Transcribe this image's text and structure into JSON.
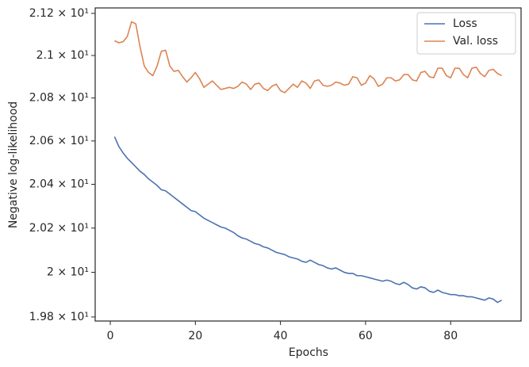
{
  "chart_data": {
    "type": "line",
    "x_label": "Epochs",
    "y_label": "Negative log-likelihood",
    "x": [
      1,
      2,
      3,
      4,
      5,
      6,
      7,
      8,
      9,
      10,
      11,
      12,
      13,
      14,
      15,
      16,
      17,
      18,
      19,
      20,
      21,
      22,
      23,
      24,
      25,
      26,
      27,
      28,
      29,
      30,
      31,
      32,
      33,
      34,
      35,
      36,
      37,
      38,
      39,
      40,
      41,
      42,
      43,
      44,
      45,
      46,
      47,
      48,
      49,
      50,
      51,
      52,
      53,
      54,
      55,
      56,
      57,
      58,
      59,
      60,
      61,
      62,
      63,
      64,
      65,
      66,
      67,
      68,
      69,
      70,
      71,
      72,
      73,
      74,
      75,
      76,
      77,
      78,
      79,
      80,
      81,
      82,
      83,
      84,
      85,
      86,
      87,
      88,
      89,
      90,
      91,
      92
    ],
    "series": [
      {
        "name": "Loss",
        "color": "#4c72b0",
        "values": [
          20.62,
          20.575,
          20.545,
          20.52,
          20.5,
          20.48,
          20.46,
          20.445,
          20.425,
          20.41,
          20.395,
          20.375,
          20.37,
          20.355,
          20.34,
          20.325,
          20.31,
          20.295,
          20.28,
          20.275,
          20.26,
          20.245,
          20.235,
          20.225,
          20.215,
          20.205,
          20.2,
          20.19,
          20.18,
          20.165,
          20.155,
          20.15,
          20.14,
          20.13,
          20.125,
          20.115,
          20.11,
          20.1,
          20.09,
          20.085,
          20.08,
          20.07,
          20.065,
          20.06,
          20.05,
          20.045,
          20.055,
          20.045,
          20.035,
          20.03,
          20.02,
          20.015,
          20.02,
          20.01,
          20.0,
          19.995,
          19.995,
          19.985,
          19.985,
          19.98,
          19.975,
          19.97,
          19.965,
          19.96,
          19.965,
          19.96,
          19.95,
          19.945,
          19.955,
          19.945,
          19.93,
          19.925,
          19.935,
          19.93,
          19.915,
          19.91,
          19.92,
          19.91,
          19.905,
          19.9,
          19.9,
          19.895,
          19.895,
          19.89,
          19.89,
          19.885,
          19.88,
          19.875,
          19.885,
          19.88,
          19.865,
          19.875
        ]
      },
      {
        "name": "Val. loss",
        "color": "#dd8452",
        "values": [
          21.07,
          21.06,
          21.065,
          21.09,
          21.16,
          21.15,
          21.04,
          20.95,
          20.92,
          20.905,
          20.95,
          21.02,
          21.025,
          20.95,
          20.925,
          20.93,
          20.9,
          20.875,
          20.895,
          20.92,
          20.89,
          20.85,
          20.865,
          20.88,
          20.86,
          20.84,
          20.845,
          20.85,
          20.845,
          20.855,
          20.875,
          20.865,
          20.84,
          20.865,
          20.87,
          20.845,
          20.835,
          20.855,
          20.865,
          20.835,
          20.825,
          20.845,
          20.865,
          20.85,
          20.88,
          20.87,
          20.845,
          20.88,
          20.885,
          20.86,
          20.855,
          20.86,
          20.875,
          20.87,
          20.86,
          20.865,
          20.9,
          20.895,
          20.86,
          20.87,
          20.905,
          20.89,
          20.855,
          20.865,
          20.895,
          20.895,
          20.88,
          20.885,
          20.91,
          20.91,
          20.885,
          20.88,
          20.92,
          20.925,
          20.9,
          20.895,
          20.94,
          20.94,
          20.905,
          20.895,
          20.94,
          20.94,
          20.91,
          20.895,
          20.94,
          20.945,
          20.915,
          20.9,
          20.93,
          20.935,
          20.915,
          20.905
        ]
      }
    ],
    "xlim": [
      -3.55,
      96.55
    ],
    "xticks": [
      0,
      20,
      40,
      60,
      80
    ],
    "ylim": [
      19.782,
      21.226
    ],
    "yscale": "log",
    "yticks": [
      {
        "value": 19.8,
        "label": "1.98 × 10¹"
      },
      {
        "value": 20,
        "label": "2 × 10¹"
      },
      {
        "value": 20.2,
        "label": "2.02 × 10¹"
      },
      {
        "value": 20.4,
        "label": "2.04 × 10¹"
      },
      {
        "value": 20.6,
        "label": "2.06 × 10¹"
      },
      {
        "value": 20.8,
        "label": "2.08 × 10¹"
      },
      {
        "value": 21,
        "label": "2.1 × 10¹"
      },
      {
        "value": 21.2,
        "label": "2.12 × 10¹"
      }
    ],
    "legend": "upper right"
  }
}
